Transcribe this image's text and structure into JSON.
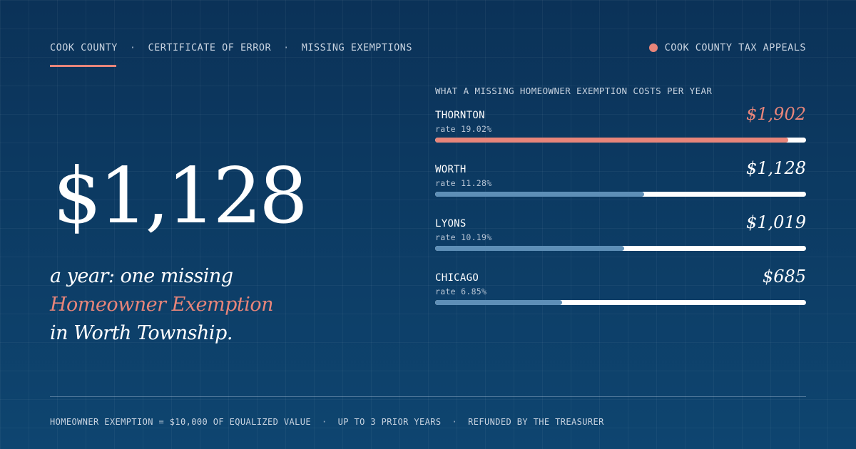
{
  "header": {
    "breadcrumb": [
      "COOK COUNTY",
      "CERTIFICATE OF ERROR",
      "MISSING EXEMPTIONS"
    ],
    "separator": "·",
    "brand": "COOK COUNTY TAX APPEALS"
  },
  "hero": {
    "amount": "$1,128",
    "line1": "a year: one missing",
    "line2": "Homeowner Exemption",
    "line3": "in Worth Township."
  },
  "chart_data": {
    "type": "bar",
    "title": "WHAT A MISSING HOMEOWNER EXEMPTION COSTS PER YEAR",
    "categories": [
      "THORNTON",
      "WORTH",
      "LYONS",
      "CHICAGO"
    ],
    "values": [
      1902,
      1128,
      1019,
      685
    ],
    "value_labels": [
      "$1,902",
      "$1,128",
      "$1,019",
      "$685"
    ],
    "rate_labels": [
      "rate 19.02%",
      "rate 11.28%",
      "rate 10.19%",
      "rate 6.85%"
    ],
    "xlim": [
      0,
      2000
    ],
    "highlight_index": 0,
    "highlight_color": "#e8857a",
    "bar_color": "#5e8fb7",
    "track_color": "#ffffff"
  },
  "footer": {
    "items": [
      "HOMEOWNER EXEMPTION = $10,000 OF EQUALIZED VALUE",
      "UP TO 3 PRIOR YEARS",
      "REFUNDED BY THE TREASURER"
    ],
    "separator": "·"
  },
  "colors": {
    "accent": "#e8857a",
    "background": "#0d3a60",
    "text": "#ffffff",
    "muted": "#c8d3e0"
  }
}
